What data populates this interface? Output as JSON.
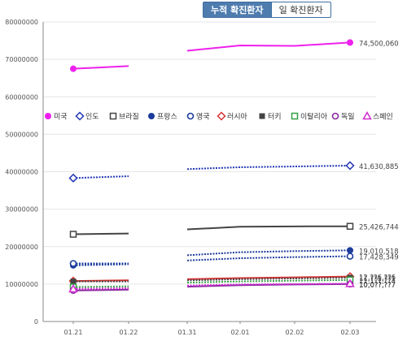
{
  "tabs": [
    {
      "label": "누적 확진환자",
      "active": true
    },
    {
      "label": "일 확진환자",
      "active": false
    }
  ],
  "chart_data": {
    "type": "line",
    "title": "",
    "xlabel": "",
    "ylabel": "",
    "categories": [
      "01.21",
      "01.22",
      "01.31",
      "02.01",
      "02.02",
      "02.03"
    ],
    "ylim": [
      0,
      80000000
    ],
    "y_ticks": [
      "0",
      "10000000",
      "20000000",
      "30000000",
      "40000000",
      "50000000",
      "60000000",
      "70000000",
      "80000000"
    ],
    "grid": "horizontal",
    "legend_position": "middle",
    "series": [
      {
        "name": "미국",
        "color": "#ee20ee",
        "marker": "filled-circle",
        "dash": "solid",
        "values": [
          67500000,
          68200000,
          72300000,
          73700000,
          73600000,
          74500060
        ],
        "end_label": "74,500,060"
      },
      {
        "name": "인도",
        "color": "#2236b4",
        "marker": "open-diamond",
        "dash": "dotted",
        "values": [
          38300000,
          38800000,
          40700000,
          41200000,
          41400000,
          41630885
        ],
        "end_label": "41,630,885"
      },
      {
        "name": "브라질",
        "color": "#444444",
        "marker": "open-square",
        "dash": "solid",
        "values": [
          23300000,
          23500000,
          24600000,
          25300000,
          25400000,
          25426744
        ],
        "end_label": "25,426,744"
      },
      {
        "name": "프랑스",
        "color": "#1c3c9c",
        "marker": "filled-circle",
        "dash": "dotted",
        "values": [
          15000000,
          15300000,
          17700000,
          18500000,
          18800000,
          19010518
        ],
        "end_label": "19,010,518"
      },
      {
        "name": "영국",
        "color": "#1c3c9c",
        "marker": "open-circle",
        "dash": "dotted",
        "values": [
          15500000,
          15500000,
          16300000,
          16900000,
          17200000,
          17428349
        ],
        "end_label": "17,428,349"
      },
      {
        "name": "러시아",
        "color": "#d83333",
        "marker": "open-diamond",
        "dash": "solid",
        "values": [
          10800000,
          11000000,
          11300000,
          11600000,
          11800000,
          12000000
        ],
        "end_label": "12,??6,??6"
      },
      {
        "name": "터키",
        "color": "#444444",
        "marker": "filled-square",
        "dash": "dotted",
        "values": [
          10700000,
          10700000,
          11000000,
          11300000,
          11500000,
          11700000
        ],
        "end_label": "11,??1,??1"
      },
      {
        "name": "이탈리아",
        "color": "#33a043",
        "marker": "open-square",
        "dash": "dotted",
        "values": [
          9200000,
          9400000,
          10400000,
          10700000,
          10900000,
          11100000
        ],
        "end_label": "11,1??,??4"
      },
      {
        "name": "독일",
        "color": "#8a2aa0",
        "marker": "open-circle",
        "dash": "solid",
        "values": [
          8300000,
          8500000,
          9300000,
          9700000,
          9900000,
          10009000
        ],
        "end_label": "10,0??,??7"
      },
      {
        "name": "스페인",
        "color": "#d12ad1",
        "marker": "open-triangle",
        "dash": "dotted",
        "values": [
          8700000,
          8900000,
          9600000,
          9900000,
          10000000,
          10100000
        ],
        "end_label": "10,0??,??7"
      }
    ]
  }
}
